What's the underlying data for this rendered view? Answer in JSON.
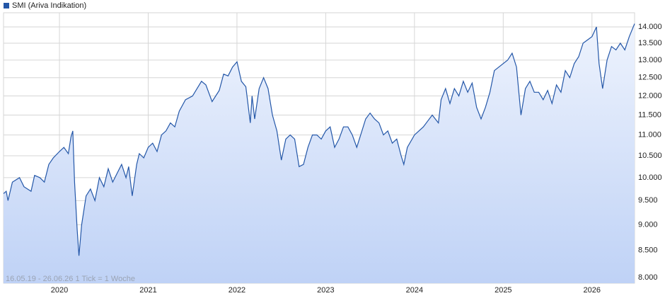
{
  "chart_data": {
    "type": "area",
    "series": [
      {
        "name": "SMI (Ariva Indikation)",
        "color": "#2457a8"
      }
    ],
    "annotation": "16.05.19 - 26.06.26   1 Tick = 1 Woche",
    "log_scale": true,
    "grid": true,
    "xlim": [
      2019.37,
      2026.48
    ],
    "xticks": [
      2020,
      2021,
      2022,
      2023,
      2024,
      2025,
      2026
    ],
    "ylim": [
      7900,
      14450
    ],
    "yticks": [
      {
        "value": 8000,
        "label": "8.000"
      },
      {
        "value": 8500,
        "label": "8.500"
      },
      {
        "value": 9000,
        "label": "9.000"
      },
      {
        "value": 9500,
        "label": "9.500"
      },
      {
        "value": 10000,
        "label": "10.000"
      },
      {
        "value": 10500,
        "label": "10.500"
      },
      {
        "value": 11000,
        "label": "11.000"
      },
      {
        "value": 11500,
        "label": "11.500"
      },
      {
        "value": 12000,
        "label": "12.000"
      },
      {
        "value": 12500,
        "label": "12.500"
      },
      {
        "value": 13000,
        "label": "13.000"
      },
      {
        "value": 13500,
        "label": "13.500"
      },
      {
        "value": 14000,
        "label": "14.000"
      }
    ],
    "x": [
      2019.37,
      2019.4,
      2019.42,
      2019.47,
      2019.55,
      2019.6,
      2019.68,
      2019.72,
      2019.78,
      2019.83,
      2019.88,
      2019.93,
      2020.0,
      2020.05,
      2020.1,
      2020.13,
      2020.15,
      2020.17,
      2020.2,
      2020.22,
      2020.25,
      2020.3,
      2020.35,
      2020.4,
      2020.45,
      2020.5,
      2020.55,
      2020.6,
      2020.65,
      2020.7,
      2020.75,
      2020.78,
      2020.82,
      2020.87,
      2020.9,
      2020.95,
      2021.0,
      2021.05,
      2021.1,
      2021.15,
      2021.2,
      2021.25,
      2021.3,
      2021.35,
      2021.42,
      2021.5,
      2021.6,
      2021.65,
      2021.72,
      2021.8,
      2021.85,
      2021.9,
      2021.95,
      2022.0,
      2022.05,
      2022.1,
      2022.15,
      2022.17,
      2022.2,
      2022.25,
      2022.3,
      2022.35,
      2022.4,
      2022.45,
      2022.5,
      2022.55,
      2022.6,
      2022.65,
      2022.7,
      2022.75,
      2022.8,
      2022.85,
      2022.9,
      2022.95,
      2023.0,
      2023.05,
      2023.1,
      2023.15,
      2023.2,
      2023.25,
      2023.3,
      2023.35,
      2023.45,
      2023.5,
      2023.55,
      2023.6,
      2023.65,
      2023.7,
      2023.75,
      2023.8,
      2023.85,
      2023.88,
      2023.92,
      2024.0,
      2024.05,
      2024.1,
      2024.15,
      2024.2,
      2024.27,
      2024.3,
      2024.35,
      2024.4,
      2024.45,
      2024.5,
      2024.55,
      2024.6,
      2024.65,
      2024.7,
      2024.75,
      2024.8,
      2024.85,
      2024.9,
      2025.05,
      2025.1,
      2025.15,
      2025.2,
      2025.25,
      2025.3,
      2025.35,
      2025.4,
      2025.45,
      2025.5,
      2025.55,
      2025.6,
      2025.65,
      2025.7,
      2025.75,
      2025.8,
      2025.85,
      2025.9,
      2025.95,
      2026.0,
      2026.05,
      2026.08,
      2026.12,
      2026.17,
      2026.22,
      2026.27,
      2026.32,
      2026.37,
      2026.42,
      2026.48
    ],
    "values": [
      9650,
      9700,
      9500,
      9900,
      10000,
      9800,
      9700,
      10050,
      10000,
      9900,
      10300,
      10450,
      10600,
      10700,
      10550,
      10950,
      11100,
      9900,
      8900,
      8400,
      9000,
      9600,
      9750,
      9500,
      10000,
      9800,
      10200,
      9900,
      10100,
      10300,
      10000,
      10250,
      9600,
      10300,
      10550,
      10450,
      10700,
      10800,
      10600,
      11000,
      11100,
      11300,
      11200,
      11600,
      11900,
      12000,
      12400,
      12300,
      11850,
      12150,
      12600,
      12550,
      12800,
      12950,
      12400,
      12250,
      11300,
      12000,
      11400,
      12200,
      12500,
      12200,
      11500,
      11100,
      10400,
      10900,
      11000,
      10900,
      10250,
      10300,
      10700,
      11000,
      11000,
      10900,
      11100,
      11200,
      10700,
      10900,
      11200,
      11200,
      11000,
      10700,
      11400,
      11550,
      11400,
      11300,
      11000,
      11100,
      10800,
      10900,
      10500,
      10300,
      10700,
      11000,
      11100,
      11200,
      11350,
      11500,
      11300,
      11900,
      12200,
      11800,
      12200,
      12000,
      12400,
      12100,
      12350,
      11700,
      11400,
      11700,
      12100,
      12700,
      13000,
      13200,
      12800,
      11500,
      12200,
      12400,
      12100,
      12100,
      11900,
      12150,
      11800,
      12300,
      12100,
      12700,
      12500,
      12900,
      13100,
      13500,
      13600,
      13700,
      14000,
      12900,
      12200,
      13000,
      13400,
      13300,
      13500,
      13300,
      13700,
      14100
    ]
  }
}
